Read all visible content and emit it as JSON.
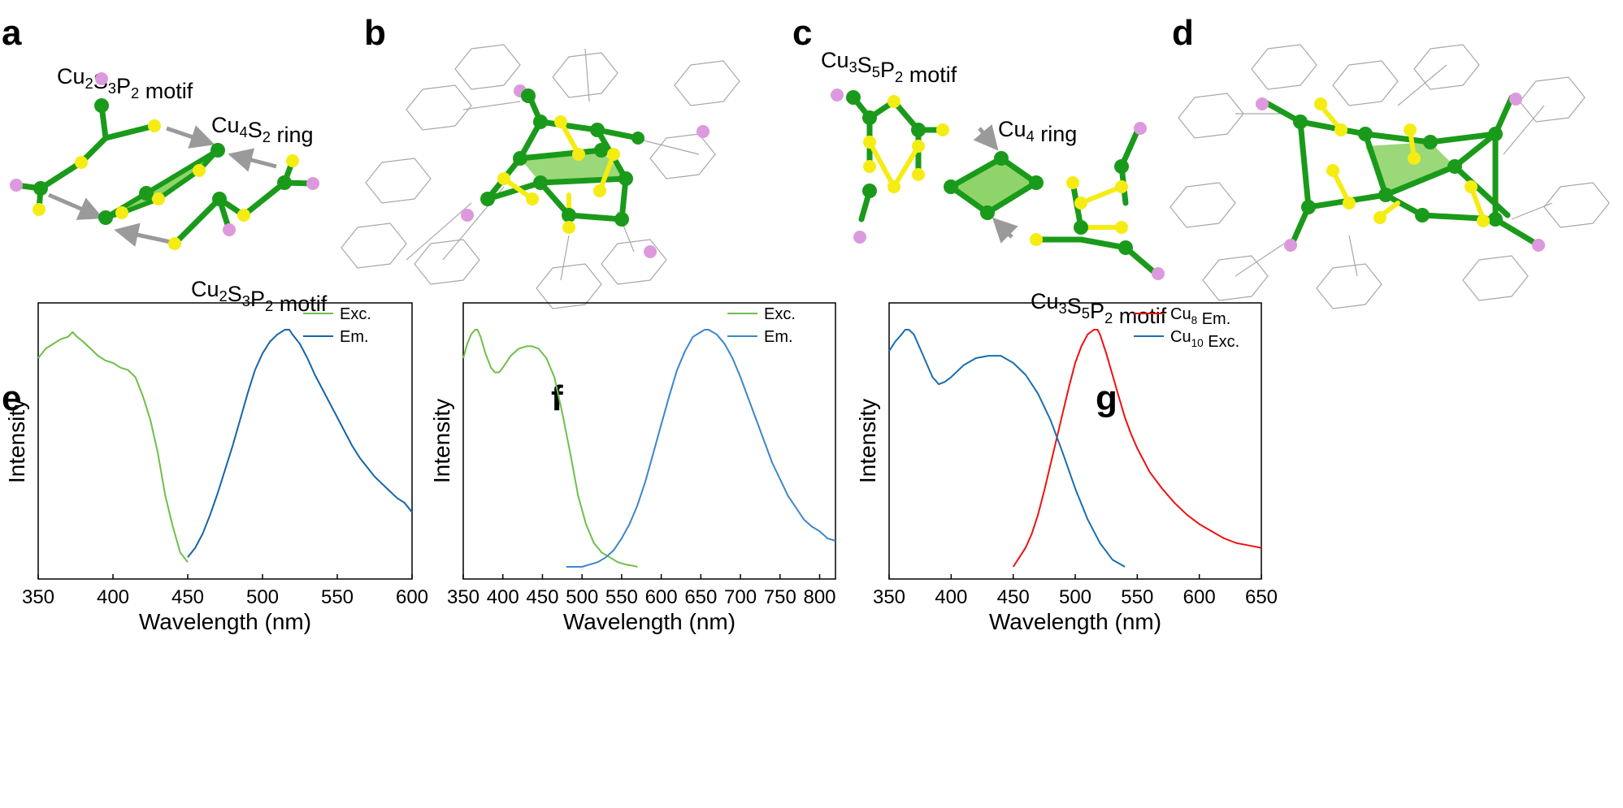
{
  "panels": {
    "a": {
      "letter": "a",
      "labels": [
        {
          "parts": [
            [
              "Cu",
              ""
            ],
            [
              "2",
              "sub"
            ],
            [
              "S",
              ""
            ],
            [
              "3",
              "sub"
            ],
            [
              "P",
              ""
            ],
            [
              "2",
              "sub"
            ],
            [
              " motif",
              ""
            ]
          ]
        },
        {
          "parts": [
            [
              "Cu",
              ""
            ],
            [
              "4",
              "sub"
            ],
            [
              "S",
              ""
            ],
            [
              "2",
              "sub"
            ],
            [
              " ring",
              ""
            ]
          ]
        },
        {
          "parts": [
            [
              "Cu",
              ""
            ],
            [
              "2",
              "sub"
            ],
            [
              "S",
              ""
            ],
            [
              "3",
              "sub"
            ],
            [
              "P",
              ""
            ],
            [
              "2",
              "sub"
            ],
            [
              " motif",
              ""
            ]
          ]
        }
      ]
    },
    "b": {
      "letter": "b"
    },
    "c": {
      "letter": "c",
      "labels": [
        {
          "parts": [
            [
              "Cu",
              ""
            ],
            [
              "3",
              "sub"
            ],
            [
              "S",
              ""
            ],
            [
              "5",
              "sub"
            ],
            [
              "P",
              ""
            ],
            [
              "2",
              "sub"
            ],
            [
              " motif",
              ""
            ]
          ]
        },
        {
          "parts": [
            [
              "Cu",
              ""
            ],
            [
              "4",
              "sub"
            ],
            [
              " ring",
              ""
            ]
          ]
        },
        {
          "parts": [
            [
              "Cu",
              ""
            ],
            [
              "3",
              "sub"
            ],
            [
              "S",
              ""
            ],
            [
              "5",
              "sub"
            ],
            [
              "P",
              ""
            ],
            [
              "2",
              "sub"
            ],
            [
              " motif",
              ""
            ]
          ]
        }
      ]
    },
    "d": {
      "letter": "d"
    }
  },
  "colors": {
    "cu": "#1a9a1a",
    "s": "#f5ec14",
    "p": "#dd99dd",
    "ring_fill": "#8fd46a",
    "ligand": "#a8a8a8",
    "arrow": "#9a9a9a",
    "exc_green": "#6ebf4a",
    "em_blue_e": "#1665a8",
    "em_blue_f": "#3d86c9",
    "exc_blue_g": "#1a6eb0",
    "em_red": "#ee1111"
  },
  "chart_data": [
    {
      "panel": "e",
      "type": "line",
      "xlabel": "Wavelength (nm)",
      "ylabel": "Intensity",
      "xlim": [
        350,
        600
      ],
      "xticks": [
        350,
        400,
        450,
        500,
        550,
        600
      ],
      "ylim": [
        0,
        1
      ],
      "legend_position": "top-right",
      "series": [
        {
          "name": "Exc.",
          "color": "#6ebf4a",
          "x": [
            350,
            355,
            360,
            365,
            370,
            373,
            376,
            380,
            385,
            390,
            395,
            400,
            405,
            410,
            415,
            420,
            425,
            430,
            435,
            440,
            445,
            450
          ],
          "y": [
            0.88,
            0.92,
            0.94,
            0.96,
            0.97,
            0.99,
            0.97,
            0.95,
            0.92,
            0.89,
            0.87,
            0.86,
            0.84,
            0.83,
            0.8,
            0.72,
            0.62,
            0.48,
            0.3,
            0.17,
            0.06,
            0.02
          ]
        },
        {
          "name": "Em.",
          "color": "#1665a8",
          "x": [
            450,
            455,
            460,
            465,
            470,
            475,
            480,
            485,
            490,
            495,
            500,
            505,
            510,
            515,
            518,
            520,
            525,
            530,
            535,
            540,
            545,
            550,
            555,
            560,
            565,
            570,
            575,
            580,
            585,
            590,
            595,
            600
          ],
          "y": [
            0.04,
            0.08,
            0.14,
            0.22,
            0.31,
            0.41,
            0.51,
            0.62,
            0.73,
            0.83,
            0.9,
            0.95,
            0.98,
            1.0,
            1.0,
            0.98,
            0.94,
            0.88,
            0.81,
            0.75,
            0.69,
            0.63,
            0.57,
            0.51,
            0.46,
            0.42,
            0.38,
            0.35,
            0.32,
            0.29,
            0.27,
            0.23
          ]
        }
      ]
    },
    {
      "panel": "f",
      "type": "line",
      "xlabel": "Wavelength (nm)",
      "ylabel": "Intensity",
      "xlim": [
        350,
        820
      ],
      "xticks": [
        350,
        400,
        450,
        500,
        550,
        600,
        650,
        700,
        750,
        800
      ],
      "ylim": [
        0,
        1
      ],
      "legend_position": "top-right",
      "series": [
        {
          "name": "Exc.",
          "color": "#6ebf4a",
          "x": [
            350,
            355,
            360,
            365,
            368,
            372,
            378,
            385,
            390,
            395,
            400,
            410,
            420,
            430,
            437,
            445,
            455,
            465,
            475,
            485,
            495,
            505,
            515,
            525,
            535,
            545,
            555,
            565,
            570
          ],
          "y": [
            0.88,
            0.94,
            0.98,
            1.0,
            1.0,
            0.97,
            0.9,
            0.84,
            0.82,
            0.82,
            0.84,
            0.89,
            0.92,
            0.93,
            0.93,
            0.92,
            0.88,
            0.8,
            0.65,
            0.48,
            0.3,
            0.18,
            0.1,
            0.06,
            0.04,
            0.02,
            0.01,
            0.004,
            0.0
          ]
        },
        {
          "name": "Em.",
          "color": "#3d86c9",
          "x": [
            480,
            500,
            510,
            520,
            530,
            540,
            550,
            560,
            570,
            580,
            590,
            600,
            610,
            620,
            630,
            640,
            650,
            655,
            660,
            670,
            680,
            690,
            700,
            710,
            720,
            730,
            740,
            750,
            760,
            770,
            780,
            790,
            800,
            810,
            820
          ],
          "y": [
            0.0,
            0.0,
            0.01,
            0.02,
            0.04,
            0.07,
            0.12,
            0.18,
            0.26,
            0.36,
            0.48,
            0.6,
            0.72,
            0.83,
            0.91,
            0.97,
            0.99,
            1.0,
            1.0,
            0.98,
            0.94,
            0.88,
            0.8,
            0.71,
            0.62,
            0.53,
            0.44,
            0.37,
            0.3,
            0.25,
            0.2,
            0.17,
            0.15,
            0.12,
            0.11
          ]
        }
      ]
    },
    {
      "panel": "g",
      "type": "line",
      "xlabel": "Wavelength (nm)",
      "ylabel": "Intensity",
      "xlim": [
        350,
        650
      ],
      "xticks": [
        350,
        400,
        450,
        500,
        550,
        600,
        650
      ],
      "ylim": [
        0,
        1
      ],
      "legend_position": "top-right",
      "series": [
        {
          "name": "Cu8 Em.",
          "label_parts": [
            [
              "Cu",
              ""
            ],
            [
              "8",
              "sub"
            ],
            [
              " Em.",
              ""
            ]
          ],
          "color": "#ee1111",
          "x": [
            450,
            455,
            460,
            465,
            470,
            475,
            480,
            485,
            490,
            495,
            500,
            505,
            510,
            515,
            518,
            520,
            525,
            530,
            535,
            540,
            545,
            550,
            560,
            570,
            580,
            590,
            600,
            610,
            620,
            630,
            640,
            650
          ],
          "y": [
            0.0,
            0.04,
            0.08,
            0.14,
            0.22,
            0.32,
            0.43,
            0.54,
            0.65,
            0.76,
            0.86,
            0.93,
            0.98,
            1.0,
            1.0,
            0.98,
            0.9,
            0.81,
            0.72,
            0.63,
            0.56,
            0.5,
            0.4,
            0.33,
            0.27,
            0.22,
            0.18,
            0.15,
            0.12,
            0.1,
            0.09,
            0.08
          ]
        },
        {
          "name": "Cu10 Exc.",
          "label_parts": [
            [
              "Cu",
              ""
            ],
            [
              "10",
              "sub"
            ],
            [
              " Exc.",
              ""
            ]
          ],
          "color": "#1a6eb0",
          "x": [
            350,
            355,
            360,
            363,
            366,
            370,
            375,
            380,
            385,
            390,
            395,
            400,
            410,
            420,
            430,
            440,
            450,
            460,
            470,
            480,
            490,
            500,
            510,
            520,
            530,
            540
          ],
          "y": [
            0.91,
            0.95,
            0.98,
            1.0,
            1.0,
            0.98,
            0.92,
            0.86,
            0.8,
            0.77,
            0.78,
            0.8,
            0.85,
            0.88,
            0.89,
            0.89,
            0.86,
            0.81,
            0.73,
            0.62,
            0.48,
            0.33,
            0.2,
            0.1,
            0.03,
            0.0
          ]
        }
      ]
    }
  ]
}
